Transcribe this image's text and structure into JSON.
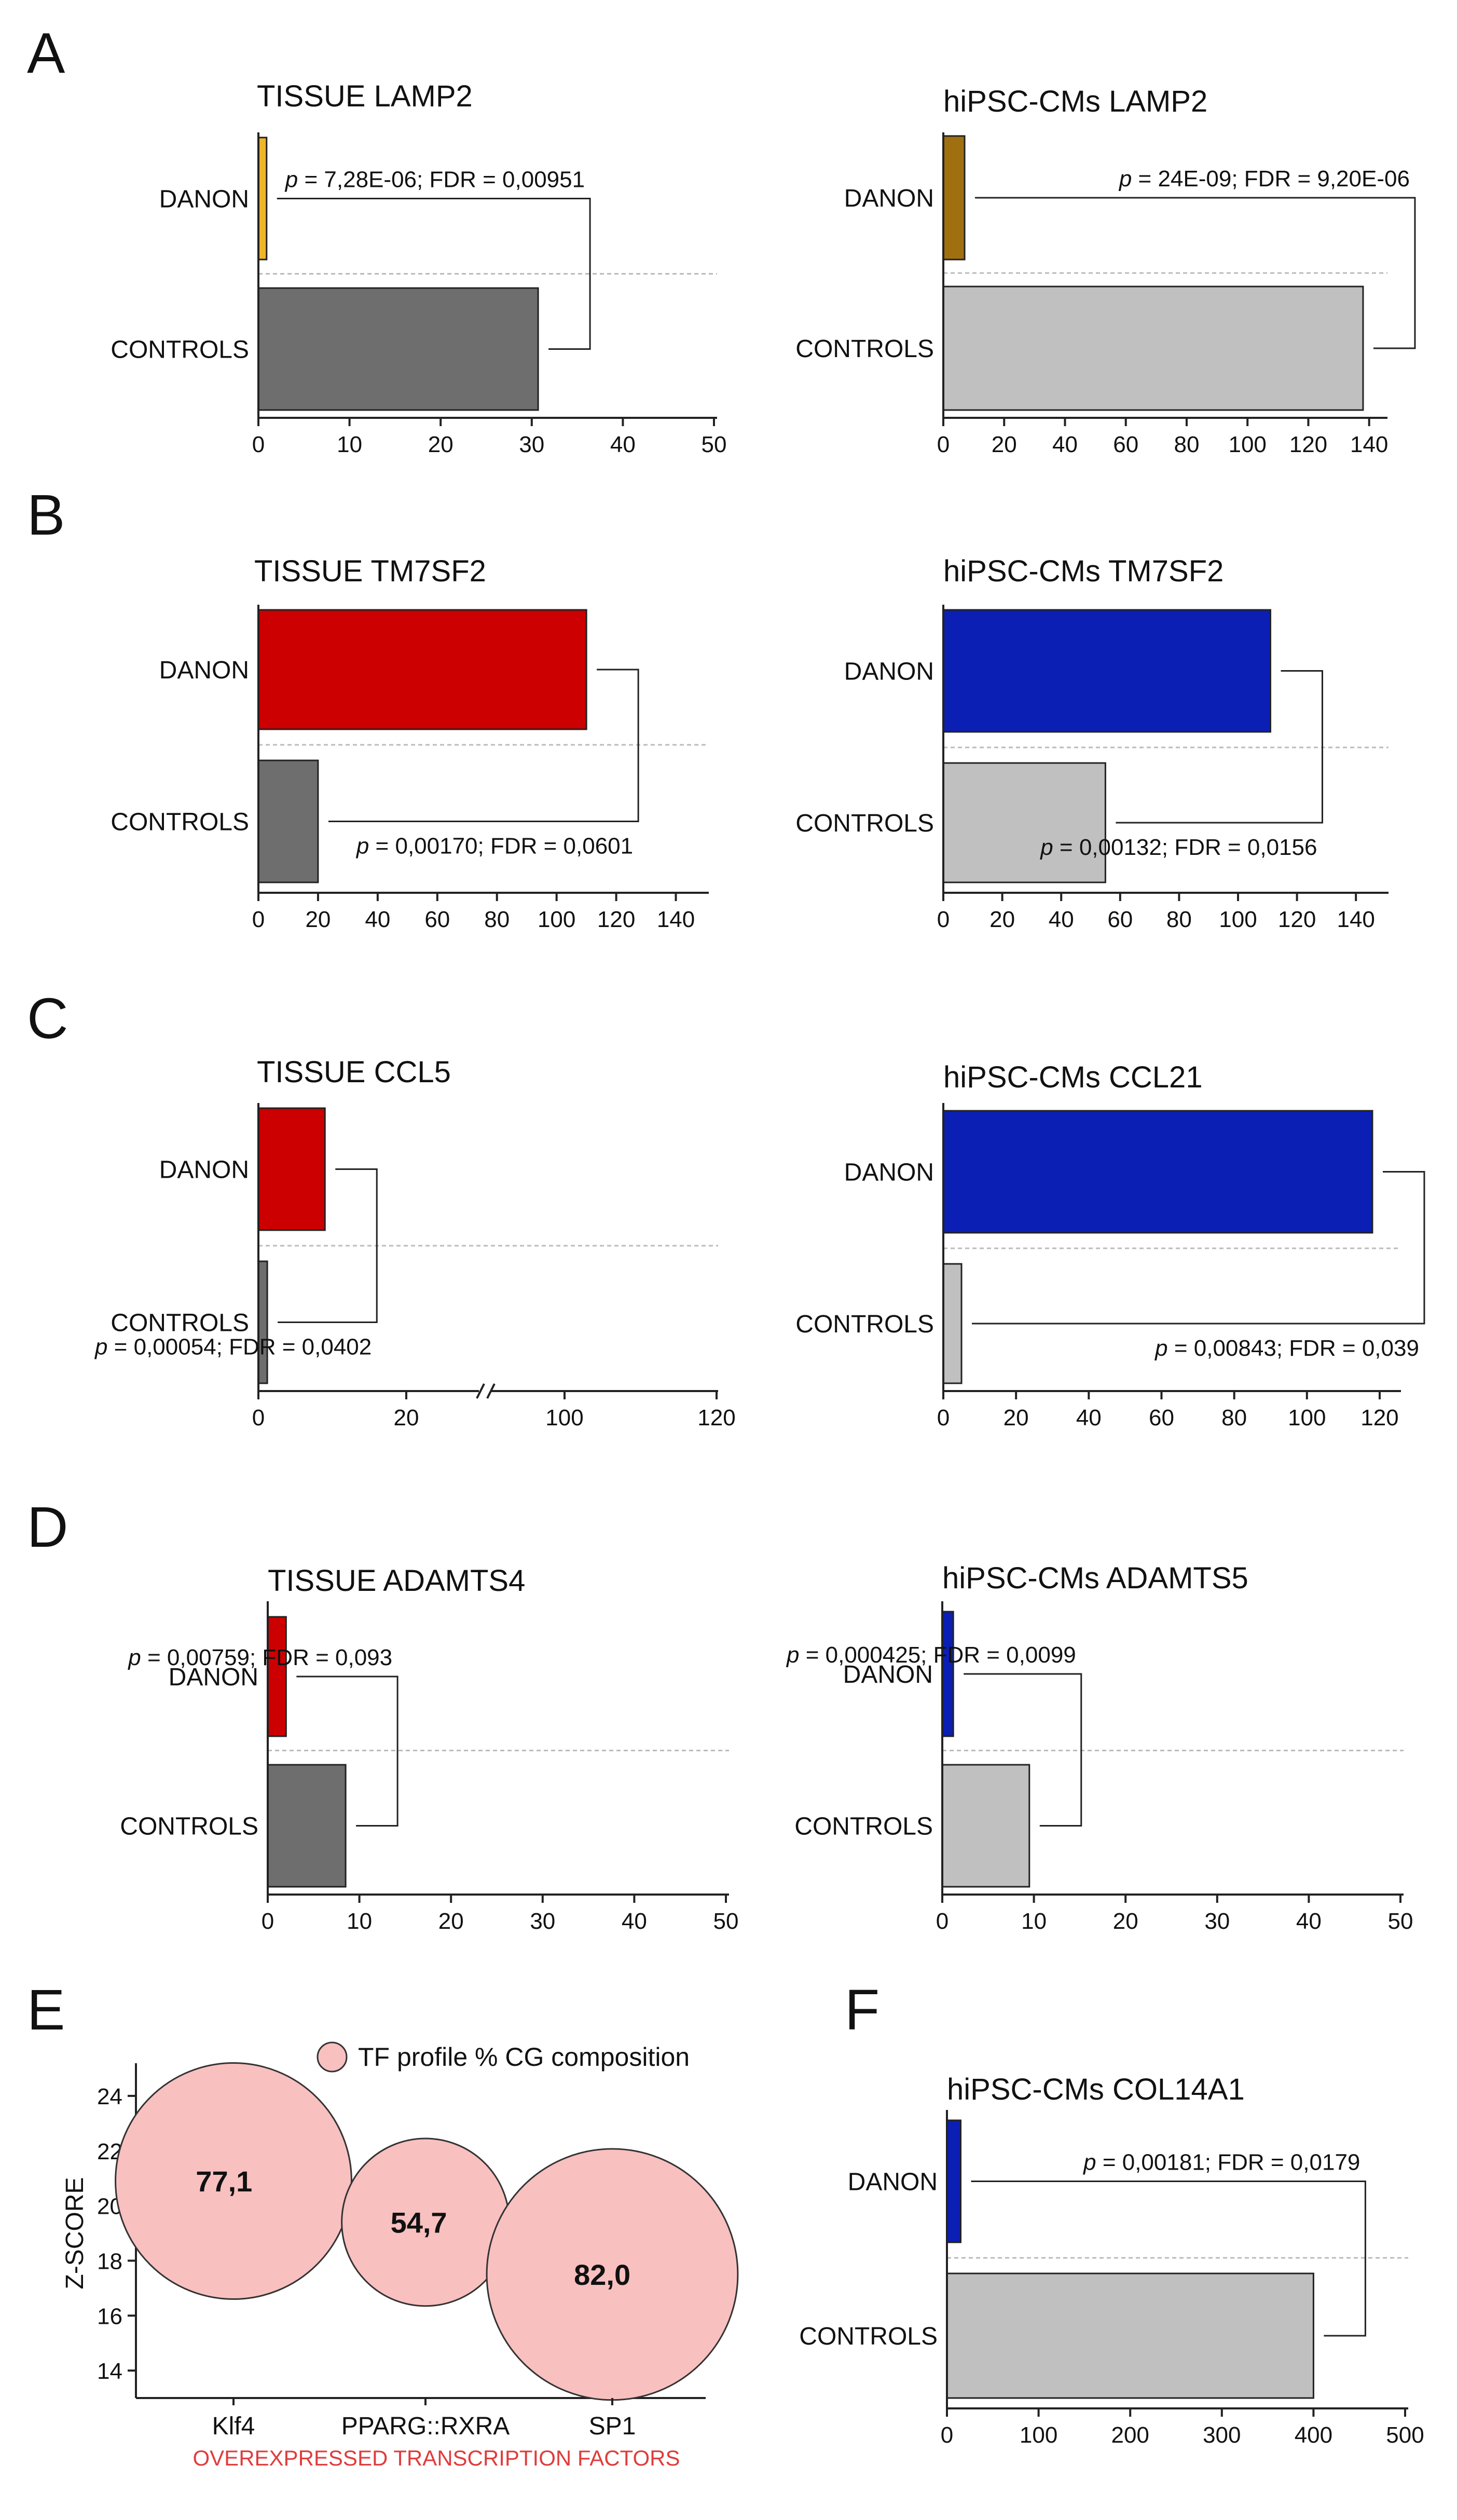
{
  "panel_letters": [
    "A",
    "B",
    "C",
    "D",
    "E",
    "F"
  ],
  "chart_data": [
    {
      "id": "A-left",
      "type": "bar",
      "orientation": "horizontal",
      "title": "TISSUE LAMP2",
      "categories": [
        "DANON",
        "CONTROLS"
      ],
      "values": [
        0.9,
        30.7
      ],
      "colors": [
        "#F0B428",
        "#6E6E6E"
      ],
      "xlim": [
        0,
        50
      ],
      "xticks": [
        "0",
        "10",
        "20",
        "30",
        "40",
        "50"
      ],
      "annotation": {
        "p_prefix": "p",
        "p_rest": " = 7,28E-06; FDR = 0,00951"
      }
    },
    {
      "id": "A-right",
      "type": "bar",
      "orientation": "horizontal",
      "title": "hiPSC-CMs LAMP2",
      "categories": [
        "DANON",
        "CONTROLS"
      ],
      "values": [
        7,
        138
      ],
      "colors": [
        "#A07010",
        "#C0C0C0"
      ],
      "xlim": [
        0,
        145
      ],
      "xticks": [
        "0",
        "20",
        "40",
        "60",
        "80",
        "100",
        "120",
        "140"
      ],
      "annotation": {
        "p_prefix": "p",
        "p_rest": " = 24E-09; FDR = 9,20E-06"
      }
    },
    {
      "id": "B-left",
      "type": "bar",
      "orientation": "horizontal",
      "title": "TISSUE TM7SF2",
      "categories": [
        "DANON",
        "CONTROLS"
      ],
      "values": [
        110,
        20
      ],
      "colors": [
        "#CC0000",
        "#6E6E6E"
      ],
      "xlim": [
        0,
        150
      ],
      "xticks": [
        "0",
        "20",
        "40",
        "60",
        "80",
        "100",
        "120",
        "140"
      ],
      "annotation": {
        "p_prefix": "p",
        "p_rest": " = 0,00170; FDR = 0,0601"
      }
    },
    {
      "id": "B-right",
      "type": "bar",
      "orientation": "horizontal",
      "title": "hiPSC-CMs TM7SF2",
      "categories": [
        "DANON",
        "CONTROLS"
      ],
      "values": [
        111,
        55
      ],
      "colors": [
        "#0B1FB5",
        "#C0C0C0"
      ],
      "xlim": [
        0,
        150
      ],
      "xticks": [
        "0",
        "20",
        "40",
        "60",
        "80",
        "100",
        "120",
        "140"
      ],
      "annotation": {
        "p_prefix": "p",
        "p_rest": " = 0,00132; FDR = 0,0156"
      }
    },
    {
      "id": "C-left",
      "type": "bar",
      "orientation": "horizontal",
      "title": "TISSUE CCL5",
      "categories": [
        "DANON",
        "CONTROLS"
      ],
      "values": [
        9,
        1.2
      ],
      "colors": [
        "#CC0000",
        "#6E6E6E"
      ],
      "xaxis_break": true,
      "xticks": [
        "0",
        "20",
        "100",
        "120"
      ],
      "annotation": {
        "p_prefix": "p",
        "p_rest": " = 0,00054; FDR = 0,0402"
      }
    },
    {
      "id": "C-right",
      "type": "bar",
      "orientation": "horizontal",
      "title": "hiPSC-CMs CCL21",
      "categories": [
        "DANON",
        "CONTROLS"
      ],
      "values": [
        118,
        5
      ],
      "colors": [
        "#0B1FB5",
        "#C0C0C0"
      ],
      "xlim": [
        0,
        125
      ],
      "xticks": [
        "0",
        "20",
        "40",
        "60",
        "80",
        "100",
        "120"
      ],
      "annotation": {
        "p_prefix": "p",
        "p_rest": " = 0,00843; FDR = 0,039"
      }
    },
    {
      "id": "D-left",
      "type": "bar",
      "orientation": "horizontal",
      "title": "TISSUE ADAMTS4",
      "categories": [
        "DANON",
        "CONTROLS"
      ],
      "values": [
        2,
        8.5
      ],
      "colors": [
        "#CC0000",
        "#6E6E6E"
      ],
      "xlim": [
        0,
        50
      ],
      "xticks": [
        "0",
        "10",
        "20",
        "30",
        "40",
        "50"
      ],
      "annotation": {
        "p_prefix": "p",
        "p_rest": " = 0,00759; FDR = 0,093"
      }
    },
    {
      "id": "D-right",
      "type": "bar",
      "orientation": "horizontal",
      "title": "hiPSC-CMs ADAMTS5",
      "categories": [
        "DANON",
        "CONTROLS"
      ],
      "values": [
        1.2,
        9.5
      ],
      "colors": [
        "#0B1FB5",
        "#C0C0C0"
      ],
      "xlim": [
        0,
        50
      ],
      "xticks": [
        "0",
        "10",
        "20",
        "30",
        "40",
        "50"
      ],
      "annotation": {
        "p_prefix": "p",
        "p_rest": " = 0,000425; FDR = 0,0099"
      }
    },
    {
      "id": "E",
      "type": "scatter",
      "subtype": "bubble",
      "categories": [
        "Klf4",
        "PPARG::RXRA",
        "SP1"
      ],
      "y": [
        20.9,
        19.4,
        17.5
      ],
      "size": [
        77.1,
        54.7,
        82.0
      ],
      "labels": [
        "77,1",
        "54,7",
        "82,0"
      ],
      "ylabel": "Z-SCORE",
      "xlabel": "OVEREXPRESSED TRANSCRIPTION FACTORS",
      "xlabel_color": "#E03C3C",
      "ylim": [
        13,
        25
      ],
      "yticks": [
        14,
        16,
        18,
        20,
        22,
        24
      ],
      "bubble_color": "#F9C0C0",
      "legend": "TF profile % CG composition",
      "legend_position": "top-right"
    },
    {
      "id": "F",
      "type": "bar",
      "orientation": "horizontal",
      "title": "hiPSC-CMs COL14A1",
      "categories": [
        "DANON",
        "CONTROLS"
      ],
      "values": [
        15,
        400
      ],
      "colors": [
        "#0B1FB5",
        "#C0C0C0"
      ],
      "xlim": [
        0,
        500
      ],
      "xticks": [
        "0",
        "100",
        "200",
        "300",
        "400",
        "500"
      ],
      "annotation": {
        "p_prefix": "p",
        "p_rest": " = 0,00181; FDR = 0,0179"
      }
    }
  ]
}
